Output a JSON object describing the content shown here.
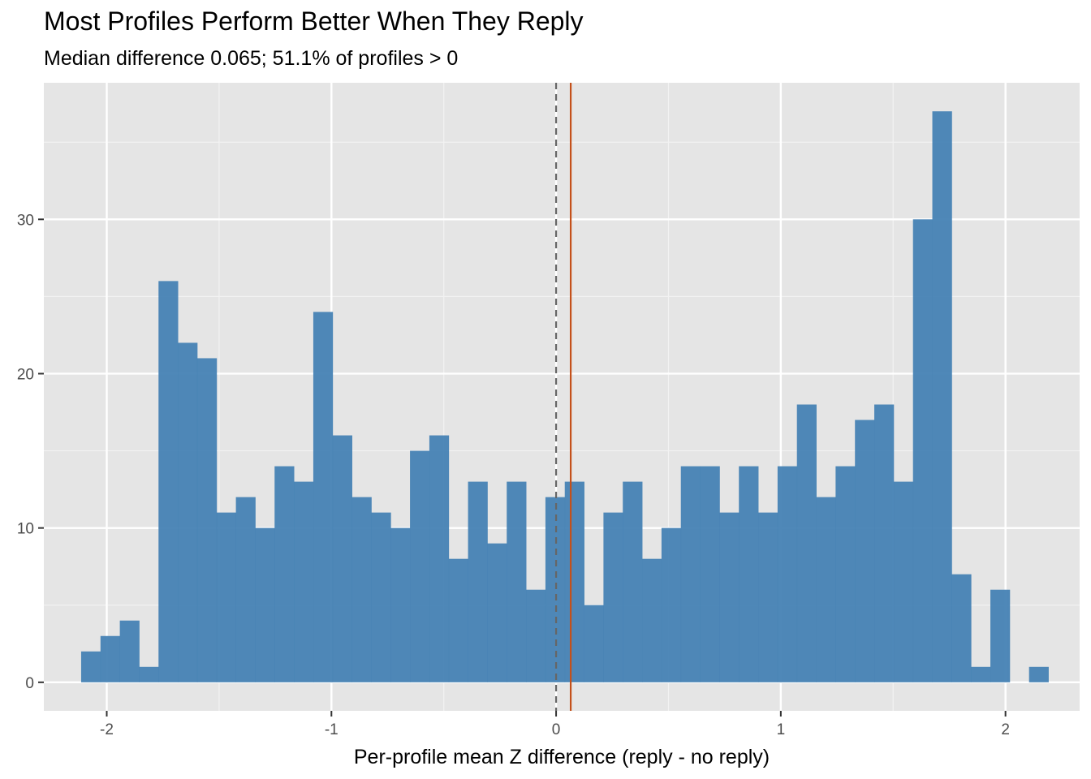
{
  "chart_data": {
    "type": "bar",
    "title": "Most Profiles Perform Better When They Reply",
    "subtitle": "Median difference 0.065; 51.1% of profiles > 0",
    "xlabel": "Per-profile mean Z difference (reply - no reply)",
    "ylabel": "",
    "xlim": [
      -2.28,
      2.33
    ],
    "ylim": [
      -1.85,
      38.85
    ],
    "x_ticks": [
      -2,
      -1,
      0,
      1,
      2
    ],
    "x_tick_labels": [
      "-2",
      "-1",
      "0",
      "1",
      "2"
    ],
    "y_ticks": [
      0,
      10,
      20,
      30
    ],
    "y_tick_labels": [
      "0",
      "10",
      "20",
      "30"
    ],
    "bin_width": 0.0861,
    "bin_start": -2.114,
    "bin_counts": [
      2,
      3,
      4,
      1,
      26,
      22,
      21,
      11,
      12,
      10,
      14,
      13,
      24,
      16,
      12,
      11,
      10,
      15,
      16,
      8,
      13,
      9,
      13,
      6,
      12,
      13,
      5,
      11,
      13,
      8,
      10,
      14,
      14,
      11,
      14,
      11,
      14,
      18,
      12,
      14,
      17,
      18,
      13,
      30,
      37,
      7,
      1,
      6,
      0,
      1
    ],
    "reference_lines": [
      {
        "x": 0,
        "style": "dashed",
        "color": "#666666"
      },
      {
        "x": 0.065,
        "style": "solid",
        "color": "#c4501a"
      }
    ],
    "bar_color": "#4682b4",
    "panel_background": "#e5e5e5",
    "grid": true,
    "legend": "none"
  }
}
